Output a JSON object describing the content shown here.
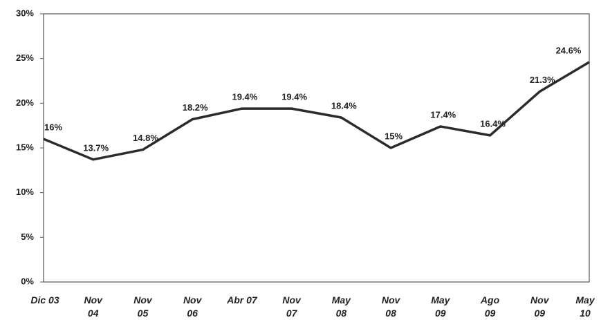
{
  "chart_data": {
    "type": "line",
    "categories": [
      "Dic 03",
      "Nov 04",
      "Nov 05",
      "Nov 06",
      "Abr 07",
      "Nov 07",
      "May 08",
      "Nov 08",
      "May 09",
      "Ago 09",
      "Nov 09",
      "May 10"
    ],
    "series": [
      {
        "color": "#2b2b2b",
        "values": [
          16,
          13.7,
          14.8,
          18.2,
          19.4,
          19.4,
          18.4,
          15,
          17.4,
          16.4,
          21.3,
          24.6
        ],
        "value_labels": [
          "16%",
          "13.7%",
          "14.8%",
          "18.2%",
          "19.4%",
          "19.4%",
          "18.4%",
          "15%",
          "17.4%",
          "16.4%",
          "21.3%",
          "24.6%"
        ]
      }
    ],
    "ylim": [
      0,
      30
    ],
    "yticks": [
      {
        "value": 0,
        "label": "0%"
      },
      {
        "value": 5,
        "label": "5%"
      },
      {
        "value": 10,
        "label": "10%"
      },
      {
        "value": 15,
        "label": "15%"
      },
      {
        "value": 20,
        "label": "20%"
      },
      {
        "value": 25,
        "label": "25%"
      },
      {
        "value": 30,
        "label": "30%"
      }
    ],
    "grid": false
  }
}
